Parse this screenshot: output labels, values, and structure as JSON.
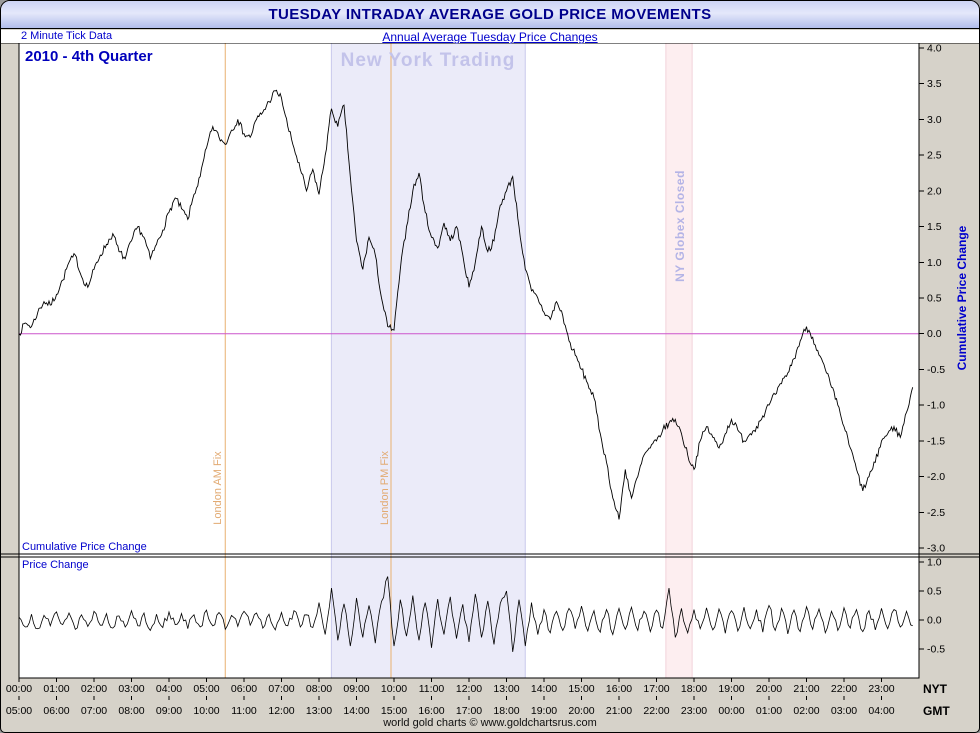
{
  "window": {
    "title": "TUESDAY INTRADAY AVERAGE GOLD PRICE MOVEMENTS"
  },
  "header": {
    "tick_data_label": "2 Minute Tick Data",
    "subtitle": "Annual Average Tuesday Price Changes"
  },
  "chart_labels": {
    "quarter": "2010 - 4th Quarter",
    "ny_trading": "New York Trading",
    "london_am_fix": "London AM Fix",
    "london_pm_fix": "London PM Fix",
    "globex_closed": "NY Globex Closed",
    "panel1": "Cumulative Price Change",
    "panel2": "Price Change",
    "right_axis": "Cumulative Price Change",
    "nyt": "NYT",
    "gmt": "GMT"
  },
  "footer": {
    "credit": "world gold charts © www.goldchartsrus.com"
  },
  "colors": {
    "title_text": "#00008b",
    "blue_label": "#0000cc",
    "series_line": "#000000",
    "zero_line": "#cc55cc",
    "titlebar_bg": "#c2cbf0",
    "window_bg": "#d6d2c9"
  },
  "chart_data": {
    "type": "line",
    "title": "TUESDAY INTRADAY AVERAGE GOLD PRICE MOVEMENTS",
    "subtitle": "Annual Average Tuesday Price Changes",
    "series_label": "2010 - 4th Quarter",
    "x_step_minutes": 10,
    "x_range_hours_nyt": [
      0,
      24
    ],
    "gmt_offset_hours": 5,
    "x_ticks_nyt": [
      "00:00",
      "01:00",
      "02:00",
      "03:00",
      "04:00",
      "05:00",
      "06:00",
      "07:00",
      "08:00",
      "09:00",
      "10:00",
      "11:00",
      "12:00",
      "13:00",
      "14:00",
      "15:00",
      "16:00",
      "17:00",
      "18:00",
      "19:00",
      "20:00",
      "21:00",
      "22:00",
      "23:00"
    ],
    "x_ticks_gmt": [
      "05:00",
      "06:00",
      "07:00",
      "08:00",
      "09:00",
      "10:00",
      "11:00",
      "12:00",
      "13:00",
      "14:00",
      "15:00",
      "16:00",
      "17:00",
      "18:00",
      "19:00",
      "20:00",
      "21:00",
      "22:00",
      "23:00",
      "00:00",
      "01:00",
      "02:00",
      "03:00",
      "04:00"
    ],
    "zero_line": {
      "value": 0.0,
      "color": "#cc55cc"
    },
    "bands": [
      {
        "label": "New York Trading",
        "start_hour_nyt": 8.33,
        "end_hour_nyt": 13.5,
        "fill": "#ebebf9",
        "edge": "#c9c9ec"
      },
      {
        "label": "NY Globex Closed",
        "start_hour_nyt": 17.25,
        "end_hour_nyt": 17.95,
        "fill": "#fdeef0",
        "edge": "#f2d2da"
      }
    ],
    "vlines": [
      {
        "label": "London AM Fix",
        "hour_nyt": 5.5,
        "color": "#e8b070"
      },
      {
        "label": "London PM Fix",
        "hour_nyt": 9.92,
        "color": "#e8b070"
      }
    ],
    "panels": [
      {
        "name": "Cumulative Price Change",
        "ylim": [
          -3.0,
          4.0
        ],
        "yticks": [
          "4.0",
          "3.5",
          "3.0",
          "2.5",
          "2.0",
          "1.5",
          "1.0",
          "0.5",
          "0.0",
          "-0.5",
          "-1.0",
          "-1.5",
          "-2.0",
          "-2.5",
          "-3.0"
        ],
        "values": [
          0.0,
          0.15,
          0.1,
          0.3,
          0.45,
          0.4,
          0.55,
          0.75,
          1.0,
          1.1,
          0.8,
          0.65,
          0.9,
          1.1,
          1.25,
          1.4,
          1.15,
          1.05,
          1.3,
          1.5,
          1.35,
          1.05,
          1.25,
          1.45,
          1.7,
          1.9,
          1.75,
          1.6,
          1.95,
          2.2,
          2.6,
          2.9,
          2.75,
          2.65,
          2.85,
          3.0,
          2.8,
          2.75,
          3.0,
          3.1,
          3.25,
          3.4,
          3.3,
          2.9,
          2.6,
          2.3,
          2.0,
          2.3,
          1.95,
          2.5,
          3.15,
          2.9,
          3.2,
          2.2,
          1.3,
          0.9,
          1.35,
          1.1,
          0.5,
          0.1,
          0.05,
          0.9,
          1.5,
          2.0,
          2.25,
          1.7,
          1.35,
          1.2,
          1.55,
          1.3,
          1.5,
          1.1,
          0.65,
          1.0,
          1.5,
          1.15,
          1.3,
          1.8,
          2.0,
          2.2,
          1.5,
          0.9,
          0.6,
          0.5,
          0.3,
          0.2,
          0.45,
          0.25,
          -0.1,
          -0.3,
          -0.5,
          -0.7,
          -0.9,
          -1.4,
          -1.8,
          -2.3,
          -2.6,
          -1.9,
          -2.3,
          -2.0,
          -1.7,
          -1.6,
          -1.5,
          -1.35,
          -1.25,
          -1.2,
          -1.4,
          -1.7,
          -1.9,
          -1.5,
          -1.3,
          -1.45,
          -1.6,
          -1.4,
          -1.2,
          -1.35,
          -1.5,
          -1.4,
          -1.3,
          -1.15,
          -1.0,
          -0.85,
          -0.7,
          -0.55,
          -0.35,
          -0.1,
          0.1,
          -0.05,
          -0.3,
          -0.5,
          -0.75,
          -1.0,
          -1.3,
          -1.6,
          -1.9,
          -2.2,
          -2.0,
          -1.8,
          -1.5,
          -1.4,
          -1.3,
          -1.45,
          -1.1,
          -0.75
        ]
      },
      {
        "name": "Price Change",
        "ylim": [
          -1.0,
          1.0
        ],
        "yticks": [
          "1.0",
          "0.5",
          "0.0",
          "-0.5"
        ],
        "values": [
          0.05,
          -0.12,
          0.1,
          -0.15,
          0.08,
          -0.1,
          0.14,
          -0.08,
          0.12,
          -0.16,
          0.09,
          -0.11,
          0.15,
          -0.09,
          0.11,
          -0.14,
          0.07,
          -0.12,
          0.16,
          -0.1,
          0.12,
          -0.18,
          0.1,
          -0.13,
          0.14,
          -0.08,
          0.11,
          -0.15,
          0.09,
          -0.12,
          0.17,
          -0.1,
          0.13,
          -0.16,
          0.08,
          -0.11,
          0.15,
          -0.09,
          0.12,
          -0.14,
          0.1,
          -0.17,
          0.13,
          -0.1,
          0.16,
          -0.12,
          0.09,
          -0.13,
          0.3,
          -0.25,
          0.55,
          -0.35,
          0.28,
          -0.45,
          0.38,
          -0.3,
          0.25,
          -0.4,
          0.32,
          0.75,
          -0.45,
          0.35,
          -0.28,
          0.42,
          -0.35,
          0.3,
          -0.48,
          0.36,
          -0.25,
          0.4,
          -0.32,
          0.27,
          -0.38,
          0.45,
          -0.3,
          0.33,
          -0.42,
          0.29,
          0.5,
          -0.55,
          0.35,
          -0.45,
          0.3,
          -0.25,
          0.18,
          -0.22,
          0.15,
          -0.18,
          0.2,
          -0.15,
          0.24,
          -0.19,
          0.16,
          -0.21,
          0.18,
          -0.25,
          0.2,
          -0.16,
          0.22,
          -0.18,
          0.15,
          -0.2,
          0.17,
          -0.14,
          0.55,
          -0.3,
          0.2,
          -0.22,
          0.18,
          -0.15,
          0.21,
          -0.17,
          0.19,
          -0.23,
          0.16,
          -0.19,
          0.22,
          -0.15,
          0.18,
          -0.21,
          0.25,
          -0.18,
          0.2,
          -0.24,
          0.17,
          -0.2,
          0.23,
          -0.16,
          0.19,
          -0.22,
          0.15,
          -0.18,
          0.21,
          -0.14,
          0.18,
          -0.2,
          0.16,
          -0.17,
          0.2,
          -0.15,
          0.18,
          -0.12,
          0.15,
          -0.1
        ]
      }
    ]
  }
}
